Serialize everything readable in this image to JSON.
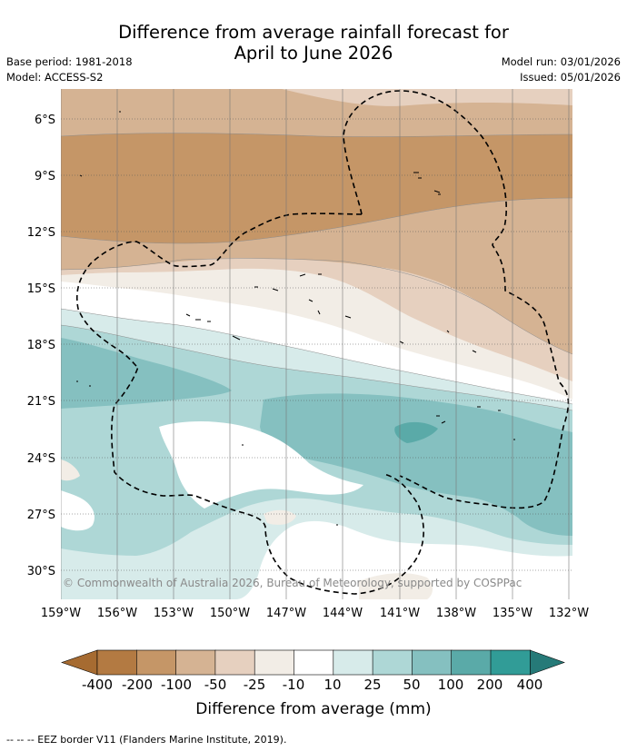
{
  "title_line1": "Difference from average rainfall forecast for",
  "title_line2": "April to June 2026",
  "meta_left": {
    "base_period": "Base period: 1981-2018",
    "model": "Model: ACCESS-S2"
  },
  "meta_right": {
    "model_run": "Model run: 03/01/2026",
    "issued": "Issued: 05/01/2026"
  },
  "map": {
    "copyright": "© Commonwealth of Australia 2026, Bureau of Meteorology, supported by COSPPac",
    "lat_labels": [
      "6°S",
      "9°S",
      "12°S",
      "15°S",
      "18°S",
      "21°S",
      "24°S",
      "27°S",
      "30°S"
    ],
    "lon_labels": [
      "159°W",
      "156°W",
      "153°W",
      "150°W",
      "147°W",
      "144°W",
      "141°W",
      "138°W",
      "135°W",
      "132°W"
    ]
  },
  "colorbar": {
    "ticks": [
      "-400",
      "-200",
      "-100",
      "-50",
      "-25",
      "-10",
      "10",
      "25",
      "50",
      "100",
      "200",
      "400"
    ],
    "colors": [
      "#a66b31",
      "#b37a42",
      "#c59667",
      "#d5b393",
      "#e6d0bf",
      "#f2ede6",
      "#ffffff",
      "#d7ebea",
      "#aed7d6",
      "#85c0c0",
      "#5aaaa8",
      "#319c97",
      "#267a78"
    ],
    "title": "Difference from average (mm)"
  },
  "footer": "--  --  -- EEZ border V11 (Flanders Marine Institute, 2019)."
}
